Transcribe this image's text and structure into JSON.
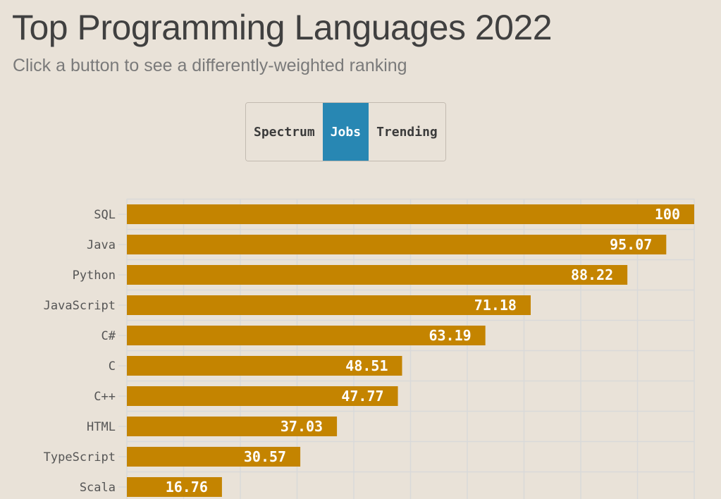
{
  "header": {
    "title": "Top Programming Languages 2022",
    "subtitle": "Click a button to see a differently-weighted ranking"
  },
  "buttons": [
    {
      "label": "Spectrum",
      "active": false
    },
    {
      "label": "Jobs",
      "active": true
    },
    {
      "label": "Trending",
      "active": false
    }
  ],
  "colors": {
    "bar": "#c48400",
    "active_button": "#2887b3",
    "background": "#e9e2d8",
    "grid": "#d9d9d9"
  },
  "chart_data": {
    "type": "bar",
    "orientation": "horizontal",
    "categories": [
      "SQL",
      "Java",
      "Python",
      "JavaScript",
      "C#",
      "C",
      "C++",
      "HTML",
      "TypeScript",
      "Scala"
    ],
    "values": [
      100,
      95.07,
      88.22,
      71.18,
      63.19,
      48.51,
      47.77,
      37.03,
      30.57,
      16.76
    ],
    "value_labels": [
      "100",
      "95.07",
      "88.22",
      "71.18",
      "63.19",
      "48.51",
      "47.77",
      "37.03",
      "30.57",
      "16.76"
    ],
    "xlim": [
      0,
      100
    ],
    "grid": true
  }
}
